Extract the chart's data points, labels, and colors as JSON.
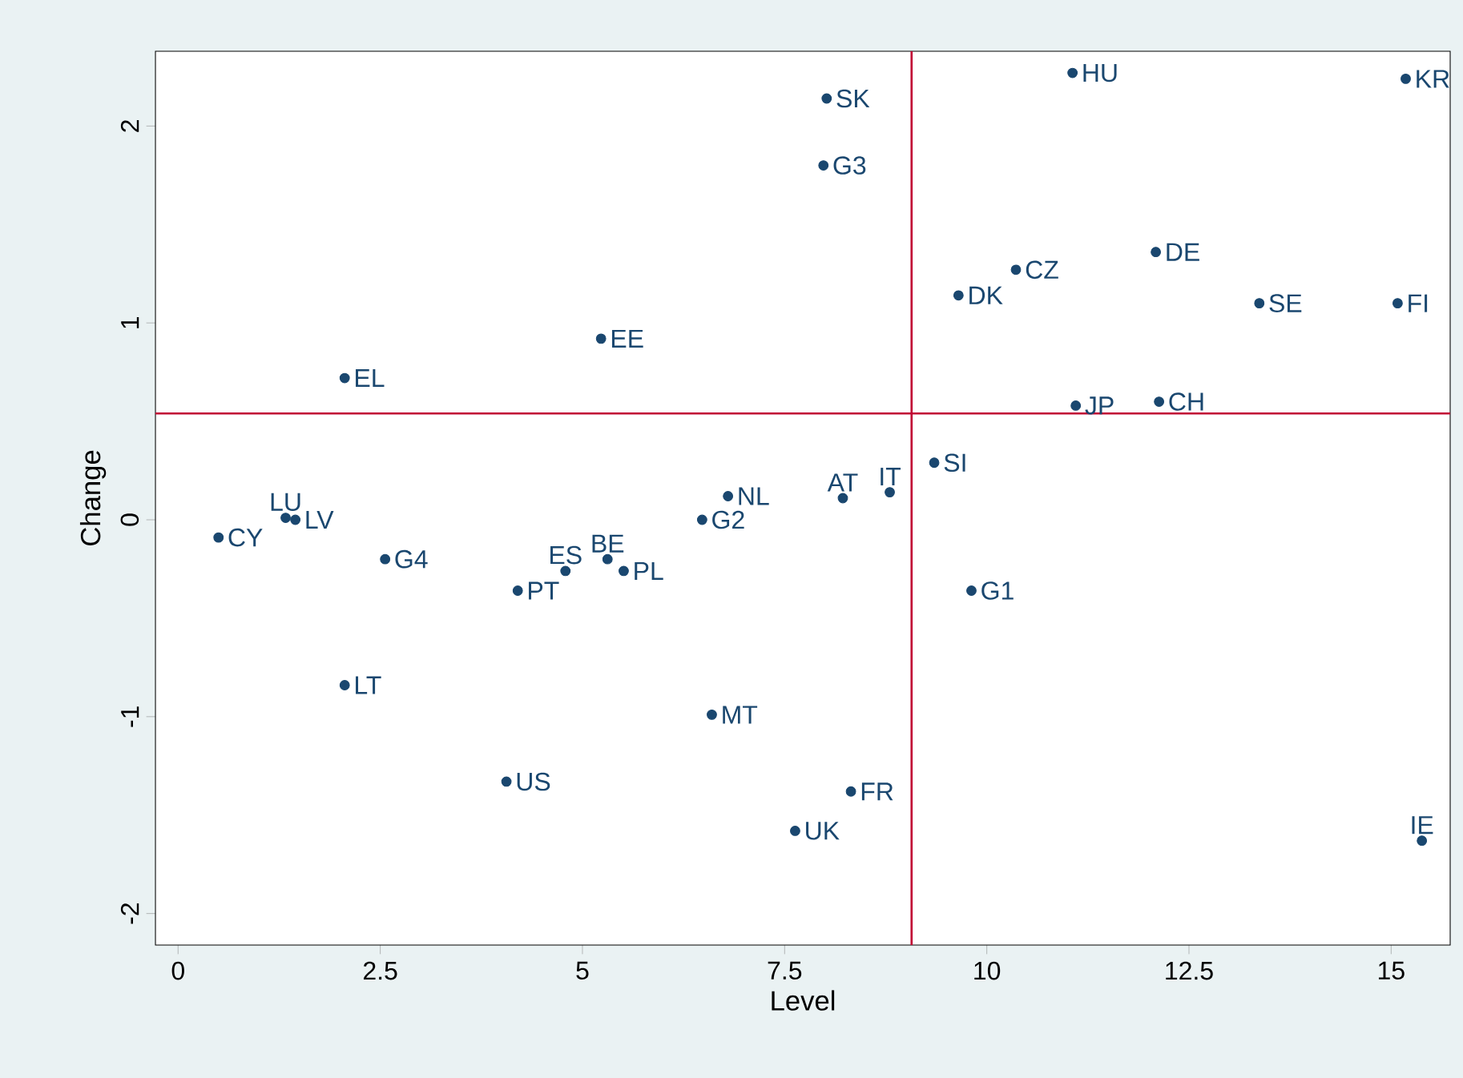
{
  "chart_data": {
    "type": "scatter",
    "xlabel": "Level",
    "ylabel": "Change",
    "xlim": [
      -0.28,
      15.73
    ],
    "ylim": [
      -2.16,
      2.38
    ],
    "xticks": [
      0,
      2.5,
      5,
      7.5,
      10,
      12.5,
      15
    ],
    "yticks": [
      -2,
      -1,
      0,
      1,
      2
    ],
    "grid": false,
    "marker": "circle",
    "series": [
      {
        "color": "#1a476f",
        "x": [
          11.06,
          15.18,
          8.02,
          7.98,
          10.36,
          12.09,
          9.65,
          13.37,
          15.08,
          5.23,
          2.06,
          11.1,
          12.13,
          9.35,
          8.8,
          8.22,
          6.8,
          6.48,
          1.33,
          1.45,
          0.5,
          2.56,
          5.31,
          4.79,
          5.51,
          4.2,
          9.81,
          2.06,
          6.6,
          4.06,
          8.32,
          7.63,
          15.38
        ],
        "values": [
          2.27,
          2.24,
          2.14,
          1.8,
          1.27,
          1.36,
          1.14,
          1.1,
          1.1,
          0.92,
          0.72,
          0.58,
          0.6,
          0.29,
          0.14,
          0.11,
          0.12,
          0.0,
          0.01,
          0.0,
          -0.09,
          -0.2,
          -0.2,
          -0.26,
          -0.26,
          -0.36,
          -0.36,
          -0.84,
          -0.99,
          -1.33,
          -1.38,
          -1.58,
          -1.63
        ]
      }
    ],
    "ref_lines": [
      {
        "axis": "x",
        "value": 9.07,
        "color": "#c10534"
      },
      {
        "axis": "y",
        "value": 0.54,
        "color": "#c10534"
      }
    ],
    "annotations": [
      {
        "text": "HU",
        "x": 11.06,
        "y": 2.27
      },
      {
        "text": "KR",
        "x": 15.18,
        "y": 2.24
      },
      {
        "text": "SK",
        "x": 8.02,
        "y": 2.14
      },
      {
        "text": "G3",
        "x": 7.98,
        "y": 1.8
      },
      {
        "text": "CZ",
        "x": 10.36,
        "y": 1.27
      },
      {
        "text": "DE",
        "x": 12.09,
        "y": 1.36
      },
      {
        "text": "DK",
        "x": 9.65,
        "y": 1.14
      },
      {
        "text": "SE",
        "x": 13.37,
        "y": 1.1
      },
      {
        "text": "FI",
        "x": 15.08,
        "y": 1.1
      },
      {
        "text": "EE",
        "x": 5.23,
        "y": 0.92
      },
      {
        "text": "EL",
        "x": 2.06,
        "y": 0.72
      },
      {
        "text": "JP",
        "x": 11.1,
        "y": 0.58
      },
      {
        "text": "CH",
        "x": 12.13,
        "y": 0.6
      },
      {
        "text": "SI",
        "x": 9.35,
        "y": 0.29
      },
      {
        "text": "IT",
        "x": 8.8,
        "y": 0.14
      },
      {
        "text": "AT",
        "x": 8.22,
        "y": 0.11
      },
      {
        "text": "NL",
        "x": 6.8,
        "y": 0.12
      },
      {
        "text": "G2",
        "x": 6.48,
        "y": 0.0
      },
      {
        "text": "LU",
        "x": 1.33,
        "y": 0.01
      },
      {
        "text": "LV",
        "x": 1.45,
        "y": 0.0
      },
      {
        "text": "CY",
        "x": 0.5,
        "y": -0.09
      },
      {
        "text": "G4",
        "x": 2.56,
        "y": -0.2
      },
      {
        "text": "BE",
        "x": 5.31,
        "y": -0.2
      },
      {
        "text": "ES",
        "x": 4.79,
        "y": -0.26
      },
      {
        "text": "PL",
        "x": 5.51,
        "y": -0.26
      },
      {
        "text": "PT",
        "x": 4.2,
        "y": -0.36
      },
      {
        "text": "G1",
        "x": 9.81,
        "y": -0.36
      },
      {
        "text": "LT",
        "x": 2.06,
        "y": -0.84
      },
      {
        "text": "MT",
        "x": 6.6,
        "y": -0.99
      },
      {
        "text": "US",
        "x": 4.06,
        "y": -1.33
      },
      {
        "text": "FR",
        "x": 8.32,
        "y": -1.38
      },
      {
        "text": "UK",
        "x": 7.63,
        "y": -1.58
      },
      {
        "text": "IE",
        "x": 15.38,
        "y": -1.63
      }
    ]
  }
}
